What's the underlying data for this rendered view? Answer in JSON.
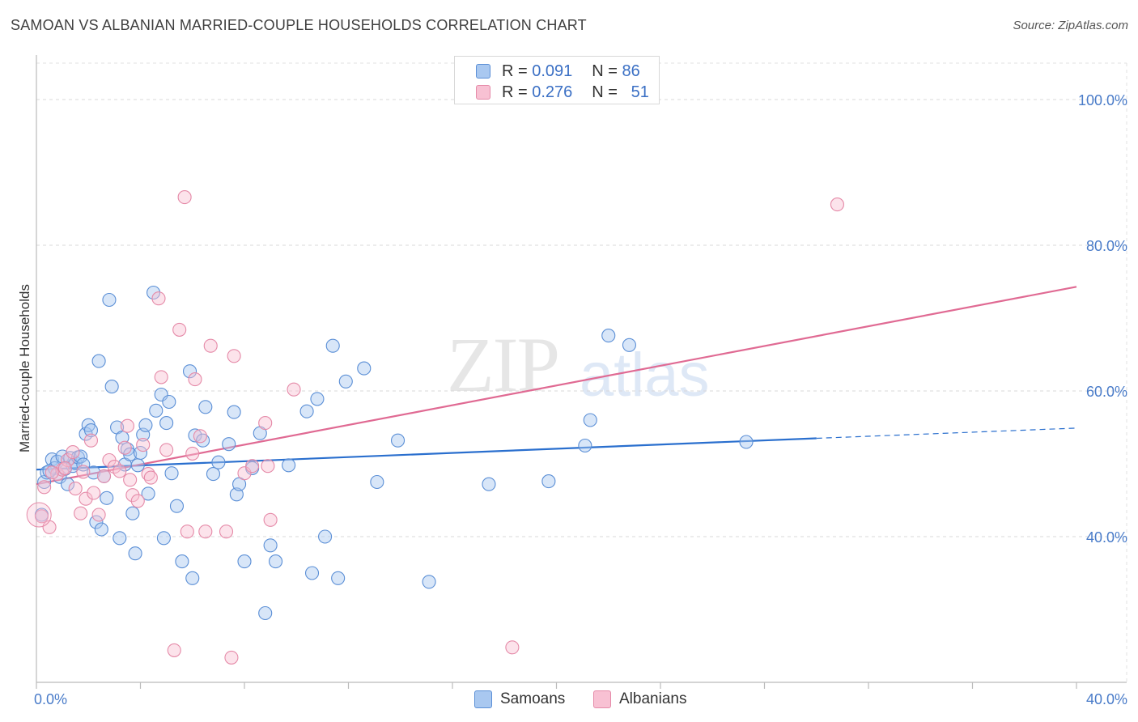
{
  "title": "SAMOAN VS ALBANIAN MARRIED-COUPLE HOUSEHOLDS CORRELATION CHART",
  "source": "Source: ZipAtlas.com",
  "watermark": {
    "zip": "ZIP",
    "atlas": "atlas"
  },
  "legend": {
    "rows": [
      {
        "r_label": "R =",
        "r_value": "0.091",
        "n_label": "N =",
        "n_value": "86",
        "color": "#a9c8f0",
        "border": "#5b8fd6"
      },
      {
        "r_label": "R =",
        "r_value": "0.276",
        "n_label": "N =",
        "n_value": "51",
        "color": "#f8c1d3",
        "border": "#e58aa8"
      }
    ]
  },
  "bottom_legend": [
    {
      "label": "Samoans",
      "color": "#a9c8f0",
      "border": "#5b8fd6"
    },
    {
      "label": "Albanians",
      "color": "#f8c1d3",
      "border": "#e58aa8"
    }
  ],
  "chart_data": {
    "type": "scatter",
    "xlabel": "",
    "ylabel": "Married-couple Households",
    "xlim": [
      0,
      40
    ],
    "ylim": [
      20,
      105
    ],
    "x_tick_labels": [
      {
        "value": 0,
        "label": "0.0%"
      },
      {
        "value": 40,
        "label": "40.0%"
      }
    ],
    "y_tick_labels": [
      {
        "value": 40,
        "label": "40.0%"
      },
      {
        "value": 60,
        "label": "60.0%"
      },
      {
        "value": 80,
        "label": "80.0%"
      },
      {
        "value": 100,
        "label": "100.0%"
      }
    ],
    "grid": true,
    "series": [
      {
        "name": "Samoans",
        "color": "#5b8fd6",
        "fill": "rgba(169,200,240,0.45)",
        "trend": {
          "x0": 0,
          "y0": 49.2,
          "x1": 30.0,
          "y1": 53.5,
          "x_dash_end": 40,
          "y_dash_end": 54.9,
          "color": "#2a6fce"
        },
        "points": [
          [
            0.3,
            47.5
          ],
          [
            0.4,
            48.8
          ],
          [
            0.6,
            50.6
          ],
          [
            0.7,
            49.4
          ],
          [
            0.8,
            50.3
          ],
          [
            0.9,
            48.2
          ],
          [
            1.0,
            51.0
          ],
          [
            1.1,
            49.3
          ],
          [
            1.2,
            47.2
          ],
          [
            1.3,
            50.8
          ],
          [
            1.4,
            49.7
          ],
          [
            1.5,
            50.1
          ],
          [
            1.6,
            50.9
          ],
          [
            1.7,
            51.0
          ],
          [
            1.8,
            49.9
          ],
          [
            1.9,
            54.1
          ],
          [
            2.0,
            55.3
          ],
          [
            2.1,
            54.6
          ],
          [
            2.2,
            48.8
          ],
          [
            2.3,
            42.0
          ],
          [
            2.4,
            64.1
          ],
          [
            2.5,
            41.0
          ],
          [
            2.6,
            48.3
          ],
          [
            2.7,
            45.3
          ],
          [
            2.8,
            72.5
          ],
          [
            2.9,
            60.6
          ],
          [
            3.1,
            55.0
          ],
          [
            3.2,
            39.8
          ],
          [
            3.3,
            53.6
          ],
          [
            3.4,
            49.9
          ],
          [
            3.5,
            52.0
          ],
          [
            3.6,
            51.3
          ],
          [
            3.7,
            43.2
          ],
          [
            3.8,
            37.7
          ],
          [
            3.9,
            49.8
          ],
          [
            4.0,
            51.5
          ],
          [
            4.1,
            54.0
          ],
          [
            4.2,
            55.3
          ],
          [
            4.3,
            45.9
          ],
          [
            4.5,
            73.5
          ],
          [
            4.6,
            57.3
          ],
          [
            4.8,
            59.5
          ],
          [
            4.9,
            39.8
          ],
          [
            5.0,
            55.6
          ],
          [
            5.1,
            58.5
          ],
          [
            5.2,
            48.7
          ],
          [
            5.4,
            44.2
          ],
          [
            5.6,
            36.6
          ],
          [
            5.9,
            62.7
          ],
          [
            6.0,
            34.3
          ],
          [
            6.1,
            53.9
          ],
          [
            6.4,
            53.2
          ],
          [
            6.5,
            57.8
          ],
          [
            6.8,
            48.6
          ],
          [
            7.0,
            50.2
          ],
          [
            7.4,
            52.7
          ],
          [
            7.6,
            57.1
          ],
          [
            7.7,
            45.8
          ],
          [
            7.8,
            47.2
          ],
          [
            8.0,
            36.6
          ],
          [
            8.3,
            49.4
          ],
          [
            8.6,
            54.2
          ],
          [
            8.8,
            29.5
          ],
          [
            9.0,
            38.8
          ],
          [
            9.2,
            36.6
          ],
          [
            9.7,
            49.8
          ],
          [
            10.4,
            57.2
          ],
          [
            10.6,
            35.0
          ],
          [
            10.8,
            58.9
          ],
          [
            11.1,
            40.0
          ],
          [
            11.4,
            66.2
          ],
          [
            11.6,
            34.3
          ],
          [
            11.9,
            61.3
          ],
          [
            12.6,
            63.1
          ],
          [
            13.1,
            47.5
          ],
          [
            13.9,
            53.2
          ],
          [
            15.1,
            33.8
          ],
          [
            17.4,
            47.2
          ],
          [
            19.7,
            47.6
          ],
          [
            21.1,
            52.5
          ],
          [
            21.3,
            56.0
          ],
          [
            22.0,
            67.6
          ],
          [
            22.8,
            66.3
          ],
          [
            27.3,
            53.0
          ],
          [
            0.2,
            43.0
          ],
          [
            0.5,
            49.0
          ]
        ]
      },
      {
        "name": "Albanians",
        "color": "#e58aa8",
        "fill": "rgba(248,193,211,0.45)",
        "trend": {
          "x0": 0,
          "y0": 47.2,
          "x1": 40,
          "y1": 74.3,
          "color": "#e06a93"
        },
        "points": [
          [
            0.2,
            42.8
          ],
          [
            0.3,
            46.8
          ],
          [
            0.5,
            41.3
          ],
          [
            0.8,
            48.6
          ],
          [
            1.0,
            49.2
          ],
          [
            1.2,
            50.5
          ],
          [
            1.4,
            51.6
          ],
          [
            1.5,
            46.6
          ],
          [
            1.7,
            43.2
          ],
          [
            1.8,
            48.9
          ],
          [
            1.9,
            45.2
          ],
          [
            2.1,
            53.2
          ],
          [
            2.2,
            46.0
          ],
          [
            2.4,
            43.0
          ],
          [
            2.6,
            48.3
          ],
          [
            2.8,
            50.5
          ],
          [
            3.0,
            49.6
          ],
          [
            3.2,
            49.0
          ],
          [
            3.4,
            52.2
          ],
          [
            3.5,
            55.2
          ],
          [
            3.6,
            47.8
          ],
          [
            3.7,
            45.7
          ],
          [
            3.9,
            44.9
          ],
          [
            4.1,
            52.6
          ],
          [
            4.3,
            48.6
          ],
          [
            4.4,
            48.1
          ],
          [
            4.7,
            72.7
          ],
          [
            4.8,
            61.9
          ],
          [
            5.0,
            51.9
          ],
          [
            5.3,
            24.4
          ],
          [
            5.5,
            68.4
          ],
          [
            5.7,
            86.6
          ],
          [
            5.8,
            40.7
          ],
          [
            6.0,
            51.4
          ],
          [
            6.1,
            61.6
          ],
          [
            6.3,
            53.8
          ],
          [
            6.5,
            40.7
          ],
          [
            6.7,
            66.2
          ],
          [
            7.3,
            40.7
          ],
          [
            7.5,
            23.4
          ],
          [
            7.6,
            64.8
          ],
          [
            8.0,
            48.7
          ],
          [
            8.3,
            49.7
          ],
          [
            8.8,
            55.6
          ],
          [
            8.9,
            49.7
          ],
          [
            9.0,
            42.3
          ],
          [
            9.9,
            60.2
          ],
          [
            18.3,
            24.8
          ],
          [
            30.8,
            85.6
          ],
          [
            1.1,
            49.4
          ],
          [
            0.6,
            48.8
          ]
        ]
      }
    ]
  }
}
